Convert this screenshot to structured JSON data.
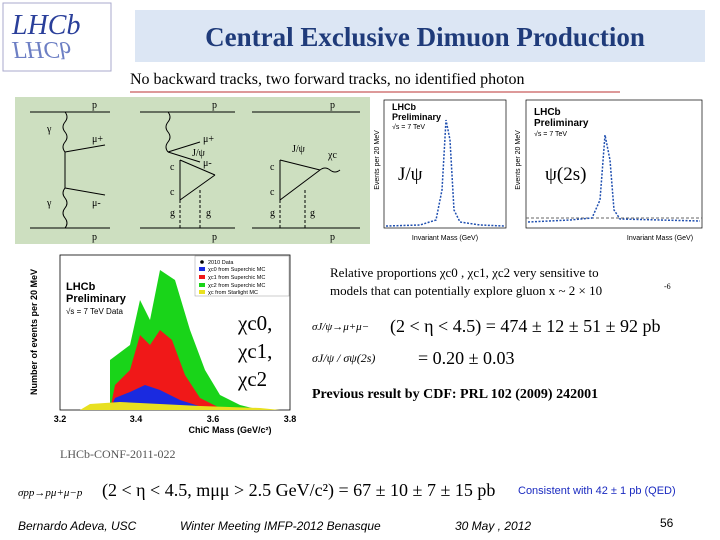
{
  "header": {
    "logo_top": "LHCb",
    "logo_bottom": "ΓHCb",
    "title": "Central Exclusive Dimuon Production"
  },
  "subtitle": "No backward tracks, two forward tracks, no identified photon",
  "diagrams": [
    {
      "labels": [
        "p",
        "γ",
        "μ+",
        "μ-",
        "γ",
        "p"
      ]
    },
    {
      "labels": [
        "p",
        "μ+",
        "J/ψ",
        "μ-",
        "c",
        "c",
        "g",
        "g",
        "p"
      ]
    },
    {
      "labels": [
        "p",
        "χc",
        "J/ψ",
        "c",
        "c",
        "g",
        "g",
        "p"
      ]
    }
  ],
  "mass_plots": [
    {
      "experiment": "LHCb",
      "status": "Preliminary",
      "energy": "√s = 7 TeV",
      "y_label": "Events per 20 MeV",
      "x_label": "Invariant Mass (GeV)",
      "peak": "J/ψ"
    },
    {
      "experiment": "LHCb",
      "status": "Preliminary",
      "energy": "√s = 7 TeV",
      "y_label": "Events per 20 MeV",
      "x_label": "Invariant Mass (GeV)",
      "peak": "ψ(2s)"
    }
  ],
  "chic_plot": {
    "experiment": "LHCb",
    "status": "Preliminary",
    "energy": "√s = 7 TeV Data",
    "y_label": "Number of events per 20 MeV",
    "x_label": "ChiC Mass (GeV/c²)",
    "xticks": [
      "3.2",
      "3.4",
      "3.6",
      "3.8"
    ],
    "legend": [
      "2010 Data",
      "χc0 from Superchic MC",
      "χc1 from Superchic MC",
      "χc2 from Superchic MC",
      "χc from Starlight MC"
    ],
    "states": [
      "χc0,",
      "χc1,",
      "χc2"
    ],
    "reference": "LHCb-CONF-2011-022"
  },
  "text": {
    "relative_line1": "Relative proportions χc0 , χc1, χc2 very sensitive to",
    "relative_line2": "models that can potentially explore gluon x ~ 2 × 10",
    "relative_exp": "-6",
    "sigma_jpsi_lhs": "σJ/ψ→μ+μ−",
    "sigma_jpsi_rhs": "(2 < η < 4.5) = 474 ± 12 ± 51 ± 92 pb",
    "ratio_lhs": "σJ/ψ / σψ(2s)",
    "ratio_rhs": "= 0.20 ± 0.03",
    "cdf": "Previous result by CDF:  PRL 102 (2009) 242001",
    "sigma_pp_lhs": "σpp→pμ+μ−p",
    "sigma_pp_rhs": "(2 < η < 4.5, mμμ > 2.5 GeV/c²) = 67 ± 10 ± 7 ± 15 pb",
    "consistent": "Consistent with 42 ± 1 pb  (QED)"
  },
  "footer": {
    "author": "Bernardo Adeva, USC",
    "meeting": "Winter Meeting IMFP-2012  Benasque",
    "date": "30 May , 2012",
    "page": "56"
  }
}
